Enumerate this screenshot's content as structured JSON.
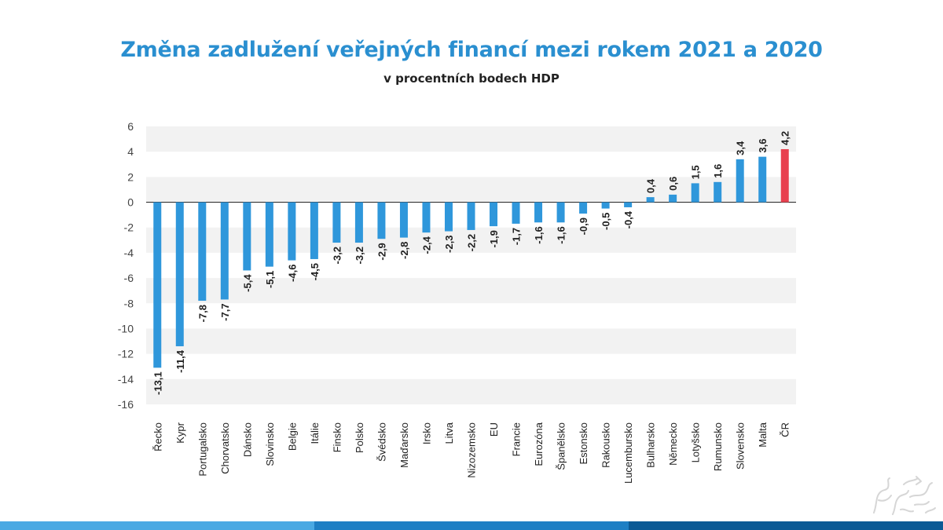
{
  "header": {
    "title": "Změna zadlužení veřejných financí mezi rokem 2021 a 2020",
    "subtitle": "v procentních bodech HDP"
  },
  "colors": {
    "bar": "#2f97db",
    "highlight": "#e8404f",
    "title": "#2a8fd0",
    "band": "#f2f2f2",
    "footer_light": "#4aa9e3",
    "footer_mid": "#1e7fc4",
    "footer_dark": "#0b5a95"
  },
  "logo": {
    "icon": "czech-lion-emblem-icon"
  },
  "chart_data": {
    "type": "bar",
    "title": "Změna zadlužení veřejných financí mezi rokem 2021 a 2020",
    "subtitle": "v procentních bodech HDP",
    "ylim": [
      -16,
      6
    ],
    "yticks": [
      "6",
      "4",
      "2",
      "0",
      "-2",
      "-4",
      "-6",
      "-8",
      "-10",
      "-12",
      "-14",
      "-16"
    ],
    "grid": "alternating horizontal bands",
    "categories": [
      "Řecko",
      "Kypr",
      "Portugalsko",
      "Chorvatsko",
      "Dánsko",
      "Slovinsko",
      "Belgie",
      "Itálie",
      "Finsko",
      "Polsko",
      "Švédsko",
      "Maďarsko",
      "Irsko",
      "Litva",
      "Nizozemsko",
      "EU",
      "Francie",
      "Eurozóna",
      "Španělsko",
      "Estonsko",
      "Rakousko",
      "Lucembursko",
      "Bulharsko",
      "Německo",
      "Lotyšsko",
      "Rumunsko",
      "Slovensko",
      "Malta",
      "ČR"
    ],
    "values": [
      -13.1,
      -11.4,
      -7.8,
      -7.7,
      -5.4,
      -5.1,
      -4.6,
      -4.5,
      -3.2,
      -3.2,
      -2.9,
      -2.8,
      -2.4,
      -2.3,
      -2.2,
      -1.9,
      -1.7,
      -1.6,
      -1.6,
      -0.9,
      -0.5,
      -0.4,
      0.4,
      0.6,
      1.5,
      1.6,
      3.4,
      3.6,
      4.2
    ],
    "labels": [
      "-13,1",
      "-11,4",
      "-7,8",
      "-7,7",
      "-5,4",
      "-5,1",
      "-4,6",
      "-4,5",
      "-3,2",
      "-3,2",
      "-2,9",
      "-2,8",
      "-2,4",
      "-2,3",
      "-2,2",
      "-1,9",
      "-1,7",
      "-1,6",
      "-1,6",
      "-0,9",
      "-0,5",
      "-0,4",
      "0,4",
      "0,6",
      "1,5",
      "1,6",
      "3,4",
      "3,6",
      "4,2"
    ],
    "highlight_category": "ČR"
  }
}
